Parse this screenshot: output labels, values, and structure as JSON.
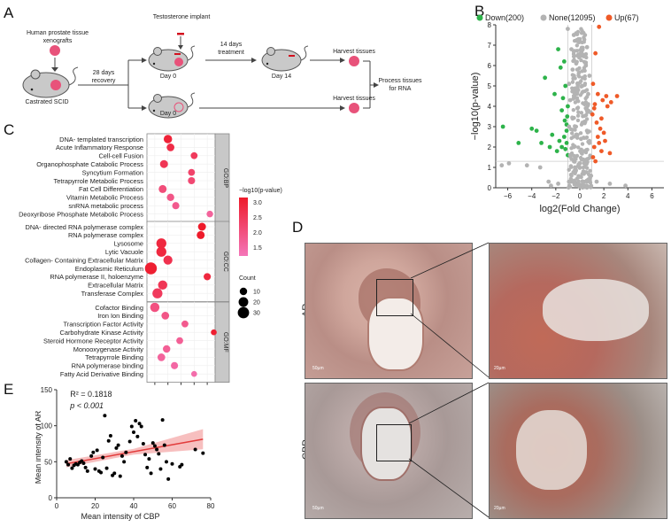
{
  "panel_labels": {
    "a": "A",
    "b": "B",
    "c": "C",
    "d": "D",
    "e": "E"
  },
  "panel_a": {
    "xenografts_label": "Human prostate tissue xenografts",
    "castrated_label": "Castrated SCID",
    "recovery_label": "28 days recovery",
    "implant_label": "Testosterone implant",
    "day0_top": "Day 0",
    "treatment_label": "14 days treatment",
    "day14_label": "Day 14",
    "harvest_top": "Harvest tissues",
    "day0_bottom": "Day 0",
    "harvest_bottom": "Harvest tissues",
    "process_label": "Process tissues for RNA",
    "colors": {
      "pink": "#e8527a",
      "mouse": "#c9c9c9",
      "red": "#d3111f"
    }
  },
  "panel_c": {
    "legend_title": "−log10(p-value)",
    "colorbar_ticks": [
      "3.0",
      "2.5",
      "2.0",
      "1.5"
    ],
    "count_title": "Count",
    "count_ticks": [
      "10",
      "20",
      "30"
    ],
    "x_ticks": [
      "2",
      "3",
      "4",
      "5",
      "6"
    ],
    "facets": [
      "GO:BP",
      "GO:CC",
      "GO:MF"
    ],
    "colors": {
      "high": "#ee1a2a",
      "low": "#f476b9"
    }
  },
  "panel_d": {
    "row_labels": [
      "AR",
      "CBP"
    ],
    "scale_bar": "50µm",
    "scale_bar_zoom": "20µm"
  },
  "chart_data": [
    {
      "type": "scatter",
      "title": "",
      "xlabel": "log2(Fold Change)",
      "ylabel": "−log10(p-value)",
      "xlim": [
        -7,
        7
      ],
      "ylim": [
        0,
        8
      ],
      "x_ticks": [
        "−6",
        "−4",
        "−2",
        "0",
        "2",
        "4",
        "6"
      ],
      "y_ticks": [
        "0",
        "1",
        "2",
        "3",
        "4",
        "5",
        "6",
        "7",
        "8"
      ],
      "legend_placement": "top",
      "series": [
        {
          "name": "Down(200)",
          "color": "#2db34a",
          "points": [
            [
              -6.4,
              3.0
            ],
            [
              -5.1,
              2.2
            ],
            [
              -4.0,
              2.9
            ],
            [
              -3.6,
              2.8
            ],
            [
              -3.2,
              2.2
            ],
            [
              -2.9,
              5.4
            ],
            [
              -2.3,
              2.6
            ],
            [
              -2.1,
              4.6
            ],
            [
              -1.8,
              6.8
            ],
            [
              -1.6,
              5.9
            ],
            [
              -1.5,
              3.8
            ],
            [
              -1.4,
              4.4
            ],
            [
              -1.3,
              6.2
            ],
            [
              -1.2,
              5.0
            ],
            [
              -1.1,
              3.1
            ],
            [
              -1.1,
              2.2
            ],
            [
              -1.0,
              1.6
            ],
            [
              -1.2,
              1.9
            ],
            [
              -1.3,
              2.5
            ],
            [
              -1.5,
              2.0
            ],
            [
              -1.7,
              2.3
            ],
            [
              -1.9,
              1.8
            ],
            [
              -2.5,
              2.0
            ],
            [
              -1.0,
              4.0
            ],
            [
              -1.05,
              3.5
            ],
            [
              -1.1,
              2.8
            ],
            [
              -1.25,
              3.3
            ]
          ]
        },
        {
          "name": "None(12095)",
          "color": "#b3b3b3",
          "points": [
            [
              -6.5,
              1.1
            ],
            [
              -5.9,
              1.2
            ],
            [
              -4.4,
              1.1
            ],
            [
              -3.3,
              1.0
            ],
            [
              -2.6,
              0.3
            ],
            [
              -2.4,
              0.1
            ],
            [
              -1.8,
              0.2
            ],
            [
              -1.0,
              7.8
            ],
            [
              -0.5,
              7.5
            ],
            [
              -0.2,
              7.2
            ],
            [
              0.3,
              7.6
            ],
            [
              0.6,
              6.9
            ],
            [
              -0.7,
              6.8
            ],
            [
              0.1,
              6.5
            ],
            [
              -0.3,
              6.1
            ],
            [
              0.5,
              6.0
            ],
            [
              -0.6,
              5.8
            ],
            [
              0.8,
              5.5
            ],
            [
              -0.9,
              5.1
            ],
            [
              0.2,
              5.0
            ],
            [
              -0.4,
              4.8
            ],
            [
              0.7,
              4.6
            ],
            [
              -0.8,
              4.3
            ],
            [
              0.4,
              4.1
            ],
            [
              -0.2,
              3.9
            ],
            [
              0.9,
              3.7
            ],
            [
              -0.6,
              3.4
            ],
            [
              0.3,
              3.2
            ],
            [
              -0.9,
              3.0
            ],
            [
              0.6,
              2.8
            ],
            [
              -0.3,
              2.6
            ],
            [
              0.1,
              2.4
            ],
            [
              0.8,
              2.2
            ],
            [
              -0.5,
              2.0
            ],
            [
              0.4,
              1.8
            ],
            [
              -0.8,
              1.6
            ],
            [
              0.6,
              1.4
            ],
            [
              0.0,
              1.2
            ],
            [
              -0.4,
              1.0
            ],
            [
              0.3,
              0.8
            ],
            [
              -0.7,
              0.6
            ],
            [
              0.7,
              0.4
            ],
            [
              -0.1,
              0.2
            ],
            [
              0.5,
              0.1
            ],
            [
              -0.9,
              0.3
            ],
            [
              0.9,
              0.6
            ],
            [
              1.4,
              0.3
            ],
            [
              2.5,
              0.2
            ],
            [
              3.8,
              0.1
            ]
          ]
        },
        {
          "name": "Up(67)",
          "color": "#ef5a28",
          "points": [
            [
              1.6,
              7.9
            ],
            [
              1.3,
              6.6
            ],
            [
              1.1,
              5.1
            ],
            [
              1.5,
              4.6
            ],
            [
              2.2,
              4.5
            ],
            [
              2.6,
              4.2
            ],
            [
              3.1,
              4.5
            ],
            [
              1.2,
              3.9
            ],
            [
              1.8,
              3.4
            ],
            [
              1.4,
              3.2
            ],
            [
              2.0,
              2.7
            ],
            [
              1.6,
              2.2
            ],
            [
              1.2,
              2.0
            ],
            [
              1.8,
              1.8
            ],
            [
              2.5,
              1.7
            ],
            [
              1.1,
              1.5
            ],
            [
              1.3,
              1.3
            ],
            [
              2.1,
              2.3
            ],
            [
              1.7,
              2.9
            ],
            [
              1.05,
              3.6
            ],
            [
              1.25,
              4.1
            ],
            [
              1.5,
              2.5
            ],
            [
              2.3,
              4.0
            ],
            [
              1.9,
              4.3
            ]
          ]
        }
      ]
    },
    {
      "type": "scatter",
      "title": "GO enrichment dot plot",
      "xlabel": "",
      "ylabel": "",
      "xlim": [
        1.4,
        6.6
      ],
      "color_legend": "−log10(p-value)",
      "size_legend": "Count",
      "facets": [
        {
          "name": "GO:BP",
          "terms": [
            {
              "term": "DNA- templated transcription",
              "x": 3.0,
              "count": 14,
              "logp": 3.1
            },
            {
              "term": "Acute Inflammatory Response",
              "x": 3.2,
              "count": 11,
              "logp": 2.9
            },
            {
              "term": "Cell-cell Fusion",
              "x": 5.0,
              "count": 8,
              "logp": 2.6
            },
            {
              "term": "Organophosphate Catabolic Process",
              "x": 2.7,
              "count": 12,
              "logp": 2.7
            },
            {
              "term": "Syncytium Formation",
              "x": 4.8,
              "count": 8,
              "logp": 2.4
            },
            {
              "term": "Tetrapyrrole Metabolic Process",
              "x": 4.8,
              "count": 9,
              "logp": 2.3
            },
            {
              "term": "Fat Cell Differentiation",
              "x": 2.6,
              "count": 12,
              "logp": 2.2
            },
            {
              "term": "Vitamin Metabolic Process",
              "x": 3.2,
              "count": 10,
              "logp": 2.0
            },
            {
              "term": "snRNA metabolic process",
              "x": 3.6,
              "count": 9,
              "logp": 1.9
            },
            {
              "term": "Deoxyribose Phosphate Metabolic Process",
              "x": 6.2,
              "count": 7,
              "logp": 1.7
            }
          ]
        },
        {
          "name": "GO:CC",
          "terms": [
            {
              "term": "DNA- directed RNA polymerase complex",
              "x": 5.6,
              "count": 12,
              "logp": 3.3
            },
            {
              "term": "RNA polymerase complex",
              "x": 5.5,
              "count": 12,
              "logp": 3.3
            },
            {
              "term": "Lysosome",
              "x": 2.5,
              "count": 22,
              "logp": 3.0
            },
            {
              "term": "Lytic Vacuole",
              "x": 2.5,
              "count": 22,
              "logp": 3.0
            },
            {
              "term": "Collagen- Containing Extracellular Matrix",
              "x": 3.0,
              "count": 17,
              "logp": 2.8
            },
            {
              "term": "Endoplasmic Reticulum",
              "x": 1.7,
              "count": 34,
              "logp": 3.2
            },
            {
              "term": "RNA polymerase II, holoenzyme",
              "x": 6.0,
              "count": 9,
              "logp": 3.0
            },
            {
              "term": "Extracellular Matrix",
              "x": 2.6,
              "count": 18,
              "logp": 2.7
            },
            {
              "term": "Transferase Complex",
              "x": 2.2,
              "count": 22,
              "logp": 2.6
            }
          ]
        },
        {
          "name": "GO:MF",
          "terms": [
            {
              "term": "Cofactor Binding",
              "x": 2.0,
              "count": 18,
              "logp": 2.1
            },
            {
              "term": "Iron Ion Binding",
              "x": 2.8,
              "count": 11,
              "logp": 2.0
            },
            {
              "term": "Transcription Factor Activity",
              "x": 4.3,
              "count": 8,
              "logp": 1.9
            },
            {
              "term": "Carbohydrate Kinase Activity",
              "x": 6.5,
              "count": 5,
              "logp": 3.2
            },
            {
              "term": "Steroid Hormone Receptor Activity",
              "x": 3.9,
              "count": 8,
              "logp": 1.8
            },
            {
              "term": "Monooxygenase Activity",
              "x": 2.9,
              "count": 10,
              "logp": 1.8
            },
            {
              "term": "Tetrapyrrole Binding",
              "x": 2.5,
              "count": 11,
              "logp": 1.7
            },
            {
              "term": "RNA polymerase binding",
              "x": 3.5,
              "count": 9,
              "logp": 1.6
            },
            {
              "term": "Fatty Acid Derivative Binding",
              "x": 5.0,
              "count": 5,
              "logp": 1.5
            }
          ]
        }
      ]
    },
    {
      "type": "scatter",
      "title": "",
      "xlabel": "Mean intensity of CBP",
      "ylabel": "Mean intensity of AR",
      "xlim": [
        0,
        80
      ],
      "ylim": [
        0,
        150
      ],
      "x_ticks": [
        "0",
        "20",
        "40",
        "60",
        "80"
      ],
      "y_ticks": [
        "0",
        "50",
        "100",
        "150"
      ],
      "annotations": [
        "R² = 0.1818",
        "p < 0.001"
      ],
      "regression": {
        "slope": 0.48,
        "intercept": 44.8
      },
      "points": [
        [
          5,
          50
        ],
        [
          6,
          46
        ],
        [
          7,
          54
        ],
        [
          8,
          41
        ],
        [
          9,
          45
        ],
        [
          10,
          47
        ],
        [
          11,
          46
        ],
        [
          12,
          49
        ],
        [
          13,
          51
        ],
        [
          14,
          48
        ],
        [
          15,
          42
        ],
        [
          16,
          37
        ],
        [
          18,
          58
        ],
        [
          19,
          63
        ],
        [
          20,
          40
        ],
        [
          21,
          66
        ],
        [
          22,
          37
        ],
        [
          23,
          35
        ],
        [
          24,
          56
        ],
        [
          25,
          114
        ],
        [
          26,
          41
        ],
        [
          27,
          79
        ],
        [
          28,
          86
        ],
        [
          29,
          31
        ],
        [
          30,
          34
        ],
        [
          31,
          69
        ],
        [
          32,
          73
        ],
        [
          33,
          30
        ],
        [
          34,
          58
        ],
        [
          35,
          50
        ],
        [
          36,
          63
        ],
        [
          38,
          78
        ],
        [
          39,
          99
        ],
        [
          40,
          91
        ],
        [
          41,
          107
        ],
        [
          42,
          85
        ],
        [
          43,
          103
        ],
        [
          44,
          99
        ],
        [
          45,
          75
        ],
        [
          46,
          60
        ],
        [
          47,
          42
        ],
        [
          48,
          54
        ],
        [
          49,
          34
        ],
        [
          50,
          76
        ],
        [
          51,
          72
        ],
        [
          52,
          67
        ],
        [
          53,
          61
        ],
        [
          54,
          40
        ],
        [
          55,
          108
        ],
        [
          56,
          73
        ],
        [
          57,
          50
        ],
        [
          58,
          26
        ],
        [
          60,
          47
        ],
        [
          64,
          43
        ],
        [
          65,
          46
        ],
        [
          72,
          67
        ],
        [
          76,
          62
        ]
      ]
    }
  ]
}
